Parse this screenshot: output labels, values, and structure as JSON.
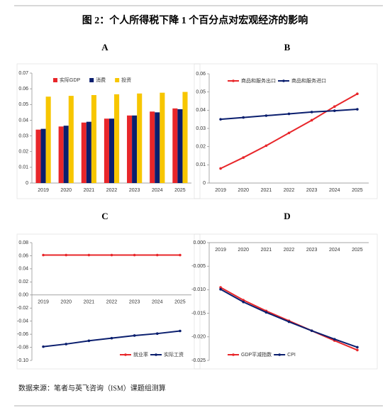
{
  "title": "图 2：个人所得税下降 1 个百分点对宏观经济的影响",
  "source": "数据来源：笔者与英飞咨询（ISM）课题组测算",
  "chart_data": [
    {
      "type": "bar",
      "panel": "A",
      "categories": [
        "2019",
        "2020",
        "2021",
        "2022",
        "2023",
        "2024",
        "2025"
      ],
      "series": [
        {
          "name": "实际GDP",
          "color": "#e8262a",
          "values": [
            0.034,
            0.036,
            0.0385,
            0.041,
            0.043,
            0.0455,
            0.0475
          ]
        },
        {
          "name": "消费",
          "color": "#0a1e6e",
          "values": [
            0.0345,
            0.0365,
            0.039,
            0.041,
            0.043,
            0.045,
            0.047
          ]
        },
        {
          "name": "投资",
          "color": "#f7c600",
          "values": [
            0.055,
            0.0555,
            0.056,
            0.0565,
            0.057,
            0.0575,
            0.058
          ]
        }
      ],
      "ylim": [
        0,
        0.07
      ],
      "yticks": [
        0,
        0.01,
        0.02,
        0.03,
        0.04,
        0.05,
        0.06,
        0.07
      ],
      "legend": "upper-left"
    },
    {
      "type": "line",
      "panel": "B",
      "categories": [
        "2019",
        "2020",
        "2021",
        "2022",
        "2023",
        "2024",
        "2025"
      ],
      "series": [
        {
          "name": "商品和服务出口",
          "color": "#e8262a",
          "values": [
            0.008,
            0.014,
            0.0205,
            0.0275,
            0.0345,
            0.042,
            0.049
          ]
        },
        {
          "name": "商品和服务进口",
          "color": "#0a1e6e",
          "values": [
            0.035,
            0.036,
            0.037,
            0.038,
            0.039,
            0.0397,
            0.0405
          ]
        }
      ],
      "ylim": [
        0,
        0.06
      ],
      "yticks": [
        0,
        0.01,
        0.02,
        0.03,
        0.04,
        0.05,
        0.06
      ],
      "legend": "upper-left"
    },
    {
      "type": "line",
      "panel": "C",
      "categories": [
        "2019",
        "2020",
        "2021",
        "2022",
        "2023",
        "2024",
        "2025"
      ],
      "series": [
        {
          "name": "就业率",
          "color": "#e8262a",
          "values": [
            0.061,
            0.061,
            0.061,
            0.061,
            0.061,
            0.061,
            0.061
          ]
        },
        {
          "name": "实际工资",
          "color": "#0a1e6e",
          "values": [
            -0.079,
            -0.075,
            -0.07,
            -0.066,
            -0.062,
            -0.059,
            -0.055
          ]
        }
      ],
      "ylim": [
        -0.1,
        0.08
      ],
      "yticks": [
        {
          "value": -0.1,
          "label": "-0.10"
        },
        -0.08,
        -0.06,
        -0.04,
        -0.02,
        {
          "value": 0,
          "label": "0.00"
        },
        0.02,
        0.04,
        0.06,
        0.08
      ],
      "legend": "lower-right"
    },
    {
      "type": "line",
      "panel": "D",
      "categories": [
        "2019",
        "2020",
        "2021",
        "2022",
        "2023",
        "2024",
        "2025"
      ],
      "series": [
        {
          "name": "GDP平减指数",
          "color": "#e8262a",
          "values": [
            -0.0095,
            -0.0122,
            -0.0145,
            -0.0166,
            -0.0187,
            -0.0208,
            -0.0228
          ]
        },
        {
          "name": "CPI",
          "color": "#0a1e6e",
          "values": [
            -0.0099,
            -0.0126,
            -0.0148,
            -0.0168,
            -0.0187,
            -0.0205,
            -0.0222
          ]
        }
      ],
      "ylim": [
        -0.025,
        0
      ],
      "yticks": [
        {
          "value": -0.025,
          "label": "-0.025"
        },
        {
          "value": -0.02,
          "label": "-0.020"
        },
        {
          "value": -0.015,
          "label": "-0.015"
        },
        {
          "value": -0.01,
          "label": "-0.010"
        },
        {
          "value": -0.005,
          "label": "-0.005"
        },
        {
          "value": 0,
          "label": "0.000"
        }
      ],
      "legend": "lower-left"
    }
  ]
}
